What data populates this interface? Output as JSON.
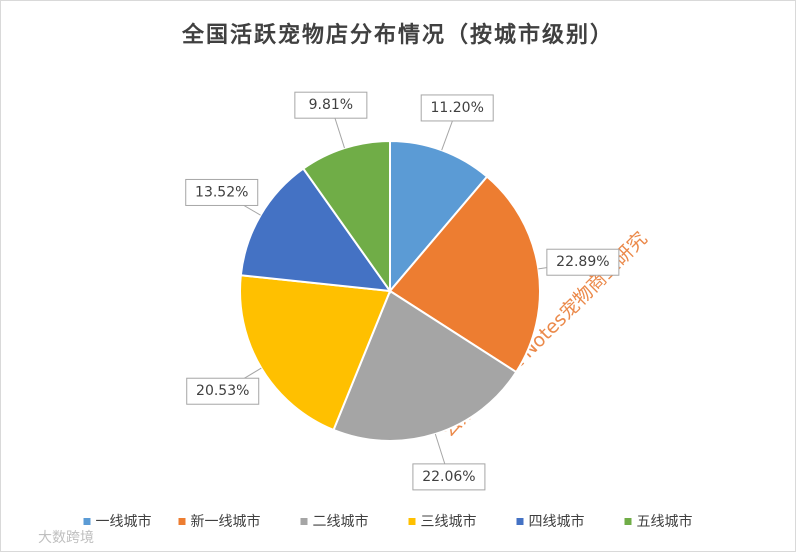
{
  "chart_data": {
    "type": "pie",
    "title": "全国活跃宠物店分布情况（按城市级别）",
    "categories": [
      "一线城市",
      "新一线城市",
      "二线城市",
      "三线城市",
      "四线城市",
      "五线城市"
    ],
    "values": [
      11.2,
      22.89,
      22.06,
      20.53,
      13.52,
      9.81
    ],
    "value_labels": [
      "11.20%",
      "22.89%",
      "22.06%",
      "20.53%",
      "13.52%",
      "9.81%"
    ],
    "colors": [
      "#5b9bd5",
      "#ed7d31",
      "#a5a5a5",
      "#ffc000",
      "#4472c4",
      "#70ad47"
    ],
    "legend": "bottom"
  },
  "watermarks": [
    "公众号：Pet Notes宠物商业研究",
    "大数跨境"
  ]
}
